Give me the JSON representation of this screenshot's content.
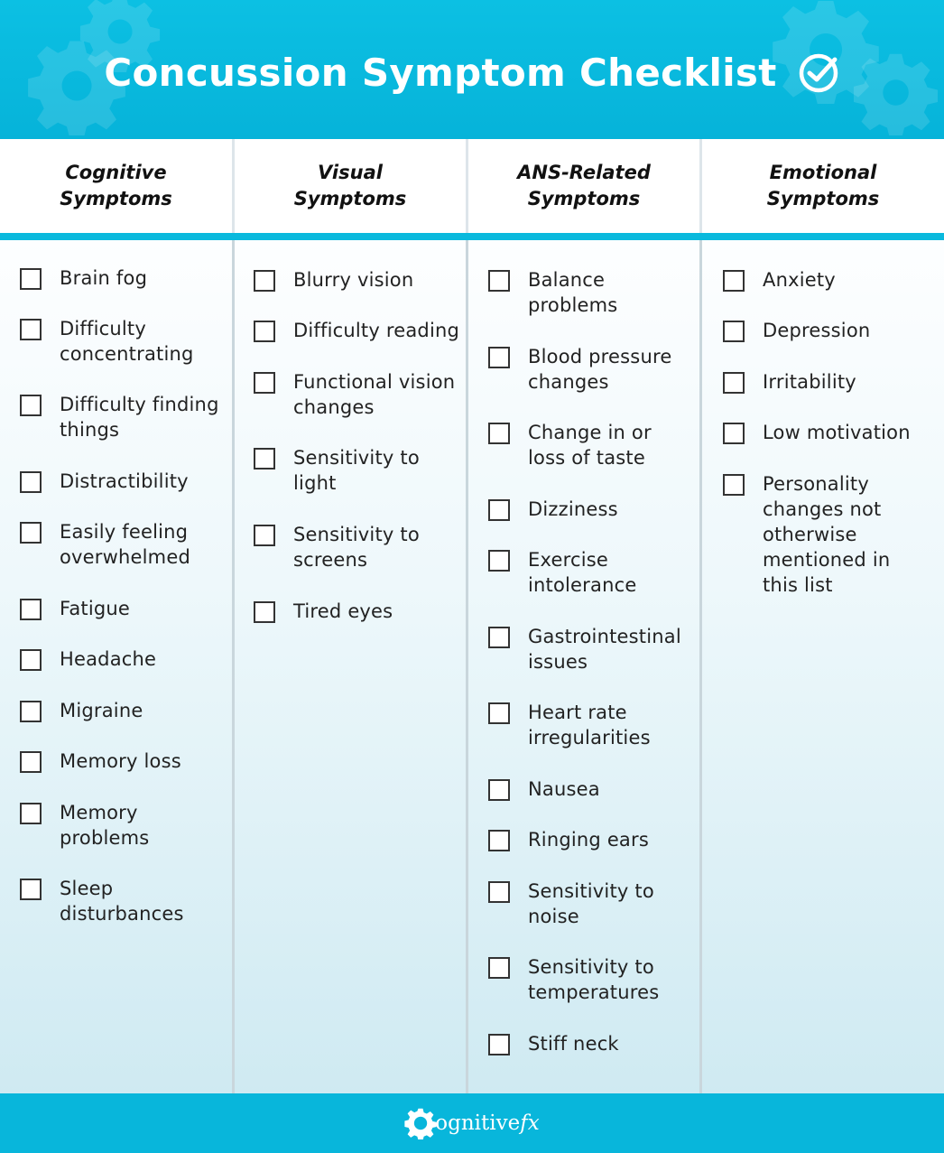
{
  "header": {
    "title": "Concussion Symptom Checklist",
    "icon": "check-circle-icon",
    "background_color": "#06b3d9"
  },
  "columns": [
    {
      "heading": "Cognitive\nSymptoms",
      "items": [
        "Brain fog",
        "Difficulty\nconcentrating",
        "Difficulty finding\nthings",
        "Distractibility",
        "Easily feeling\noverwhelmed",
        "Fatigue",
        "Headache",
        "Migraine",
        "Memory loss",
        "Memory\nproblems",
        "Sleep\ndisturbances"
      ]
    },
    {
      "heading": "Visual\nSymptoms",
      "items": [
        "Blurry vision",
        "Difficulty reading",
        "Functional vision\nchanges",
        "Sensitivity to\nlight",
        "Sensitivity to\nscreens",
        "Tired eyes"
      ]
    },
    {
      "heading": "ANS-Related\nSymptoms",
      "items": [
        "Balance\nproblems",
        "Blood pressure\nchanges",
        "Change in or\nloss of taste",
        "Dizziness",
        "Exercise\nintolerance",
        "Gastrointestinal\nissues",
        "Heart rate\nirregularities",
        "Nausea",
        "Ringing ears",
        "Sensitivity to\nnoise",
        "Sensitivity to\ntemperatures",
        "Stiff neck"
      ]
    },
    {
      "heading": "Emotional\nSymptoms",
      "items": [
        "Anxiety",
        "Depression",
        "Irritability",
        "Low motivation",
        "Personality\nchanges not\notherwise\nmentioned in\nthis list"
      ]
    }
  ],
  "footer": {
    "logo_icon": "gear-icon",
    "logo_text_main": "ognitive",
    "logo_text_fx": "fx"
  }
}
